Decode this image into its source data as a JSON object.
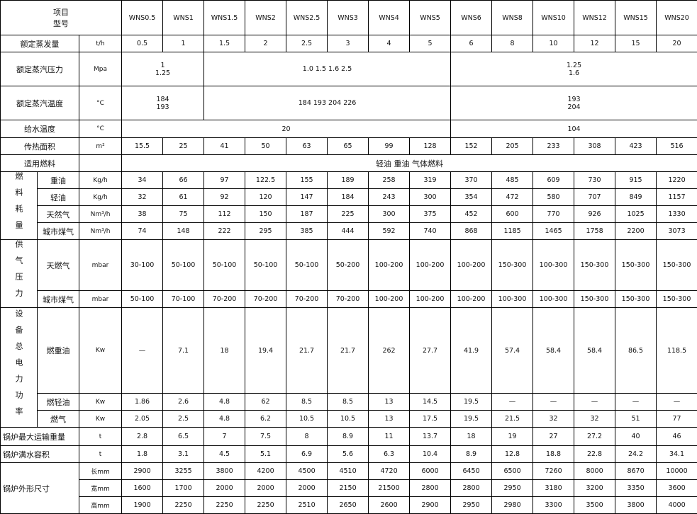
{
  "header": {
    "item_label": "项目",
    "model_label": "型号",
    "models": [
      "WNS0.5",
      "WNS1",
      "WNS1.5",
      "WNS2",
      "WNS2.5",
      "WNS3",
      "WNS4",
      "WNS5",
      "WNS6",
      "WNS8",
      "WNS10",
      "WNS12",
      "WNS15",
      "WNS20"
    ]
  },
  "rows": [
    {
      "label": "额定蒸发量",
      "unit": "t/h",
      "cells": [
        {
          "t": "0.5"
        },
        {
          "t": "1"
        },
        {
          "t": "1.5"
        },
        {
          "t": "2"
        },
        {
          "t": "2.5"
        },
        {
          "t": "3"
        },
        {
          "t": "4"
        },
        {
          "t": "5"
        },
        {
          "t": "6"
        },
        {
          "t": "8"
        },
        {
          "t": "10"
        },
        {
          "t": "12"
        },
        {
          "t": "15"
        },
        {
          "t": "20"
        }
      ]
    },
    {
      "label": "额定蒸汽压力",
      "unit": "Mpa",
      "cells": [
        {
          "t": [
            "1",
            "1.25"
          ],
          "span": 2
        },
        {
          "t": "1.0 1.5 1.6 2.5",
          "span": 6
        },
        {
          "t": [
            "1.25",
            "1.6"
          ],
          "span": 6
        }
      ]
    },
    {
      "label": "额定蒸汽温度",
      "unit": "°C",
      "cells": [
        {
          "t": [
            "184",
            "193"
          ],
          "span": 2
        },
        {
          "t": "184 193 204 226",
          "span": 6
        },
        {
          "t": [
            "193",
            "204"
          ],
          "span": 6
        }
      ]
    },
    {
      "label": "给水温度",
      "unit": "°C",
      "cells": [
        {
          "t": "20",
          "span": 8
        },
        {
          "t": "104",
          "span": 6
        }
      ]
    },
    {
      "label": "传热面积",
      "unit": "m²",
      "cells": [
        {
          "t": "15.5"
        },
        {
          "t": "25"
        },
        {
          "t": "41"
        },
        {
          "t": "50"
        },
        {
          "t": "63"
        },
        {
          "t": "65"
        },
        {
          "t": "99"
        },
        {
          "t": "128"
        },
        {
          "t": "152"
        },
        {
          "t": "205"
        },
        {
          "t": "233"
        },
        {
          "t": "308"
        },
        {
          "t": "423"
        },
        {
          "t": "516"
        }
      ]
    },
    {
      "label": "适用燃料",
      "unit": "",
      "cells": [
        {
          "t": "轻油 重油 气体燃料",
          "span": 14
        }
      ]
    }
  ],
  "groups": [
    {
      "label": "燃料耗量",
      "rows": [
        {
          "sub": "重油",
          "unit": "Kg/h",
          "values": [
            "34",
            "66",
            "97",
            "122.5",
            "155",
            "189",
            "258",
            "319",
            "370",
            "485",
            "609",
            "730",
            "915",
            "1220"
          ]
        },
        {
          "sub": "轻油",
          "unit": "Kg/h",
          "values": [
            "32",
            "61",
            "92",
            "120",
            "147",
            "184",
            "243",
            "300",
            "354",
            "472",
            "580",
            "707",
            "849",
            "1157"
          ]
        },
        {
          "sub": "天然气",
          "unit": "Nm³/h",
          "values": [
            "38",
            "75",
            "112",
            "150",
            "187",
            "225",
            "300",
            "375",
            "452",
            "600",
            "770",
            "926",
            "1025",
            "1330"
          ]
        },
        {
          "sub": "城市煤气",
          "unit": "Nm³/h",
          "values": [
            "74",
            "148",
            "222",
            "295",
            "385",
            "444",
            "592",
            "740",
            "868",
            "1185",
            "1465",
            "1758",
            "2200",
            "3073"
          ]
        }
      ]
    },
    {
      "label": "供气压力",
      "rows": [
        {
          "sub": "天燃气",
          "unit": "mbar",
          "tall": 72,
          "values": [
            "30-100",
            "50-100",
            "50-100",
            "50-100",
            "50-100",
            "50-200",
            "100-200",
            "100-200",
            "100-200",
            "150-300",
            "100-300",
            "150-300",
            "150-300",
            "150-300"
          ]
        },
        {
          "sub": "城市煤气",
          "unit": "mbar",
          "values": [
            "50-100",
            "70-100",
            "70-200",
            "70-200",
            "70-200",
            "70-200",
            "100-200",
            "100-200",
            "100-200",
            "100-300",
            "100-300",
            "150-300",
            "150-300",
            "150-300"
          ]
        }
      ]
    },
    {
      "label": "设备总电力功率",
      "rows": [
        {
          "sub": "燃重油",
          "unit": "Kw",
          "tall": 121,
          "values": [
            "—",
            "7.1",
            "18",
            "19.4",
            "21.7",
            "21.7",
            "262",
            "27.7",
            "41.9",
            "57.4",
            "58.4",
            "58.4",
            "86.5",
            "118.5"
          ]
        },
        {
          "sub": "燃轻油",
          "unit": "Kw",
          "values": [
            "1.86",
            "2.6",
            "4.8",
            "62",
            "8.5",
            "8.5",
            "13",
            "14.5",
            "19.5",
            "—",
            "—",
            "—",
            "—",
            "—"
          ]
        },
        {
          "sub": "燃气",
          "unit": "Kw",
          "values": [
            "2.05",
            "2.5",
            "4.8",
            "6.2",
            "10.5",
            "10.5",
            "13",
            "17.5",
            "19.5",
            "21.5",
            "32",
            "32",
            "51",
            "77"
          ]
        }
      ]
    }
  ],
  "tail_rows": [
    {
      "label": "锅炉最大运输重量",
      "unit": "t",
      "values": [
        "2.8",
        "6.5",
        "7",
        "7.5",
        "8",
        "8.9",
        "11",
        "13.7",
        "18",
        "19",
        "27",
        "27.2",
        "40",
        "46"
      ]
    },
    {
      "label": "锅炉满水容积",
      "unit": "t",
      "values": [
        "1.8",
        "3.1",
        "4.5",
        "5.1",
        "6.9",
        "5.6",
        "6.3",
        "10.4",
        "8.9",
        "12.8",
        "18.8",
        "22.8",
        "24.2",
        "34.1"
      ]
    }
  ],
  "dimensions": {
    "label": "锅炉外形尺寸",
    "rows": [
      {
        "unit": "长mm",
        "values": [
          "2900",
          "3255",
          "3800",
          "4200",
          "4500",
          "4510",
          "4720",
          "6000",
          "6450",
          "6500",
          "7260",
          "8000",
          "8670",
          "10000"
        ]
      },
      {
        "unit": "宽mm",
        "values": [
          "1600",
          "1700",
          "2000",
          "2000",
          "2000",
          "2150",
          "21500",
          "2800",
          "2800",
          "2950",
          "3180",
          "3200",
          "3350",
          "3600"
        ]
      },
      {
        "unit": "高mm",
        "values": [
          "1900",
          "2250",
          "2250",
          "2250",
          "2510",
          "2650",
          "2600",
          "2900",
          "2950",
          "2980",
          "3300",
          "3500",
          "3800",
          "4000"
        ]
      }
    ]
  }
}
